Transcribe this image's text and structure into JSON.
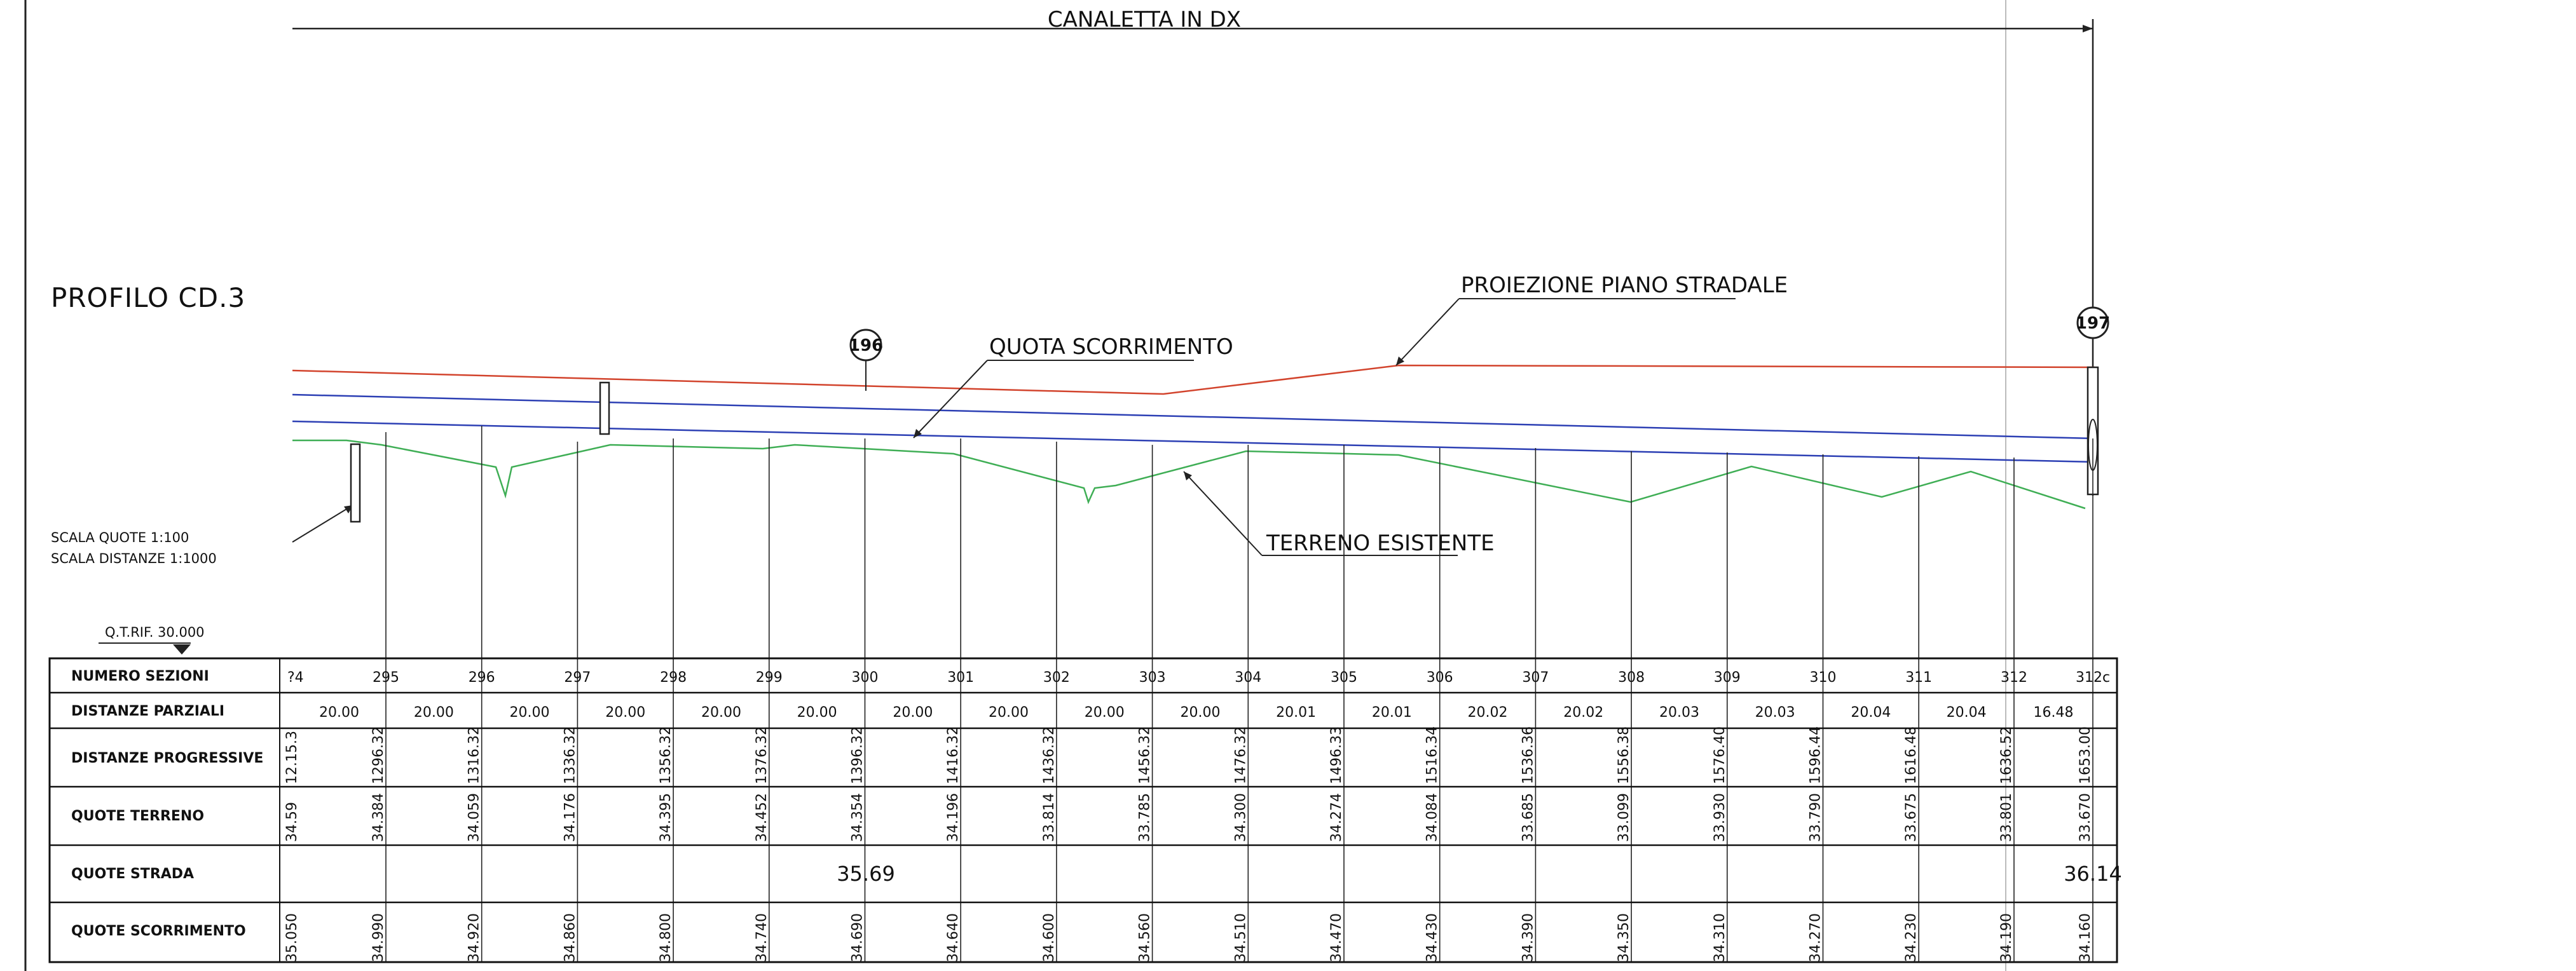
{
  "drawing": {
    "top_label": "CANALETTA IN DX",
    "profile_title": "PROFILO CD.3",
    "scale_quote": "SCALA QUOTE    1:100",
    "scale_distanze": "SCALA DISTANZE   1:1000",
    "reference": "Q.T.RIF. 30.000",
    "annotations": {
      "road_plane": "PROIEZIONE PIANO STRADALE",
      "flow_level": "QUOTA SCORRIMENTO",
      "ground": "TERRENO ESISTENTE",
      "node_a": "196",
      "node_b": "197"
    }
  },
  "table": {
    "row_labels": {
      "sections": "NUMERO SEZIONI",
      "partial": "DISTANZE PARZIALI",
      "progressive": "DISTANZE PROGRESSIVE",
      "ground": "QUOTE TERRENO",
      "road": "QUOTE STRADA",
      "flow": "QUOTE SCORRIMENTO"
    },
    "first_partial_section": "?4",
    "first_progressive": "12.15.3",
    "first_ground": "34.59",
    "first_flow": "35.050",
    "sections": [
      "295",
      "296",
      "297",
      "298",
      "299",
      "300",
      "301",
      "302",
      "303",
      "304",
      "305",
      "306",
      "307",
      "308",
      "309",
      "310",
      "311",
      "312",
      "312c"
    ],
    "partial_distances": [
      "20.00",
      "20.00",
      "20.00",
      "20.00",
      "20.00",
      "20.00",
      "20.00",
      "20.00",
      "20.00",
      "20.00",
      "20.01",
      "20.01",
      "20.02",
      "20.02",
      "20.03",
      "20.03",
      "20.04",
      "20.04",
      "16.48"
    ],
    "progressive": [
      "1296.32",
      "1316.32",
      "1336.32",
      "1356.32",
      "1376.32",
      "1396.32",
      "1416.32",
      "1436.32",
      "1456.32",
      "1476.32",
      "1496.33",
      "1516.34",
      "1536.36",
      "1556.38",
      "1576.40",
      "1596.44",
      "1616.48",
      "1636.52",
      "1653.00"
    ],
    "ground_levels": [
      "34.384",
      "34.059",
      "34.176",
      "34.395",
      "34.452",
      "34.354",
      "34.196",
      "33.814",
      "33.785",
      "34.300",
      "34.274",
      "34.084",
      "33.685",
      "33.099",
      "33.930",
      "33.790",
      "33.675",
      "33.801",
      "33.670"
    ],
    "road_levels": [
      "35.69",
      "36.14"
    ],
    "flow_levels": [
      "34.990",
      "34.920",
      "34.860",
      "34.800",
      "34.740",
      "34.690",
      "34.640",
      "34.600",
      "34.560",
      "34.510",
      "34.470",
      "34.430",
      "34.390",
      "34.350",
      "34.310",
      "34.270",
      "34.230",
      "34.190",
      "34.160"
    ]
  },
  "colors": {
    "road_line": "#d2432c",
    "flow_line": "#2c3fb4",
    "ground_line": "#3fae55",
    "ink": "#111111"
  }
}
